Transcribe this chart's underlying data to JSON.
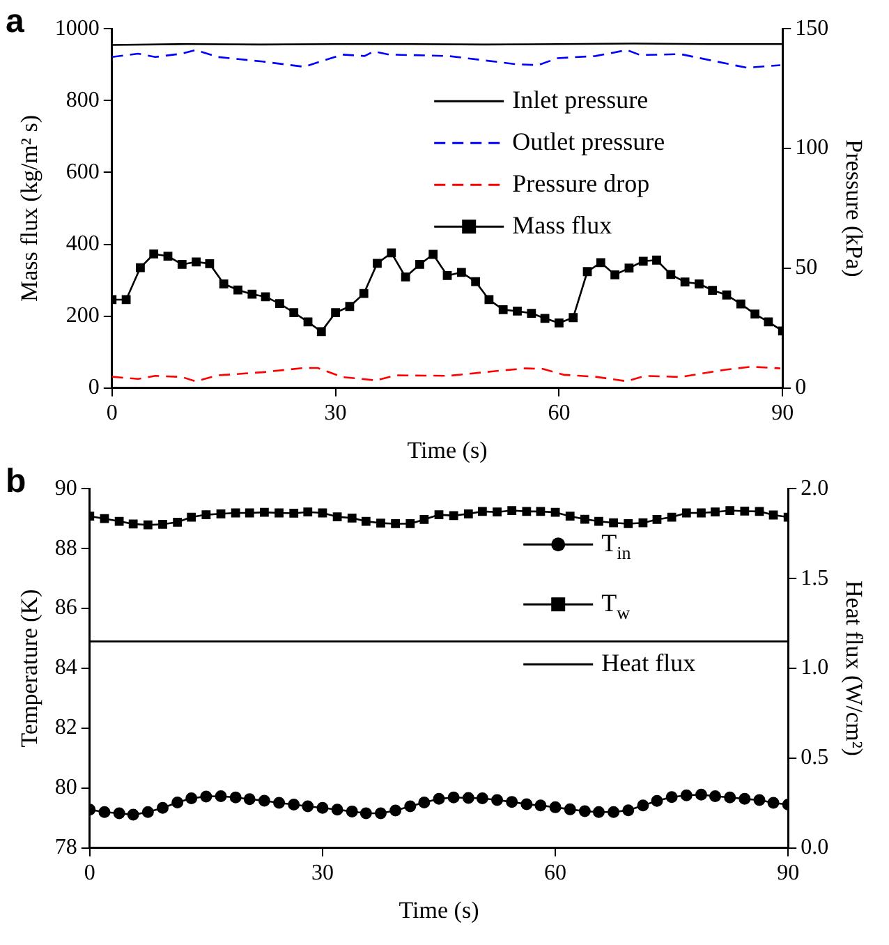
{
  "chart_data": [
    {
      "type": "line",
      "annotations": [
        "a"
      ],
      "xlabel": "Time (s)",
      "ylabel": "Mass flux (kg/m² s)",
      "y2label": "Pressure (kPa)",
      "xlim": [
        0,
        90
      ],
      "xticks": [
        0,
        30,
        60,
        90
      ],
      "ylim": [
        0,
        1000
      ],
      "yticks": [
        0,
        200,
        400,
        600,
        800,
        1000
      ],
      "y2lim": [
        0,
        150
      ],
      "y2ticks": [
        0,
        50,
        100,
        150
      ],
      "grid": false,
      "legend": "top right",
      "x": [
        0,
        1.9,
        3.8,
        5.6,
        7.5,
        9.4,
        11.3,
        13.1,
        15,
        16.9,
        18.8,
        20.6,
        22.5,
        24.4,
        26.3,
        28.1,
        30,
        31.9,
        33.8,
        35.6,
        37.5,
        39.4,
        41.3,
        43.1,
        45,
        46.9,
        48.8,
        50.6,
        52.5,
        54.4,
        56.3,
        58.1,
        60,
        61.9,
        63.8,
        65.6,
        67.5,
        69.4,
        71.3,
        73.1,
        75,
        76.9,
        78.8,
        80.6,
        82.5,
        84.4,
        86.3,
        88.1,
        90
      ],
      "series": [
        {
          "name": "Inlet pressure",
          "color": "#000000",
          "axis": "y2",
          "marker": "none",
          "line_style": "solid",
          "x": [
            0,
            10,
            20,
            30,
            40,
            50,
            60,
            70,
            80,
            90
          ],
          "values": [
            143.2,
            143.6,
            143.4,
            143.6,
            143.6,
            143.4,
            143.6,
            143.8,
            143.6,
            143.6
          ]
        },
        {
          "name": "Outlet pressure",
          "color": "#0000ff",
          "axis": "y2",
          "marker": "none",
          "line_style": "dashed",
          "x": [
            0,
            3.5,
            5.8,
            9.4,
            11.2,
            14.2,
            20.2,
            25.8,
            30.9,
            33.9,
            35.1,
            37.2,
            45.2,
            54.2,
            57.2,
            59.8,
            64.9,
            69.1,
            70.9,
            76.3,
            85.2,
            89.7
          ],
          "values": [
            138.2,
            139.6,
            138.2,
            139.6,
            141.1,
            138.2,
            136.3,
            134.1,
            139.2,
            138.6,
            140.5,
            139.2,
            138.6,
            135.2,
            134.8,
            137.7,
            138.6,
            141.1,
            139,
            139.4,
            133.7,
            134.8
          ]
        },
        {
          "name": "Pressure drop",
          "color": "#ff0000",
          "axis": "y2",
          "marker": "none",
          "line_style": "dashed",
          "x": [
            0,
            3.5,
            5.8,
            9.4,
            11.2,
            14.2,
            20.2,
            25.8,
            27.6,
            30.9,
            35.4,
            38.1,
            45.2,
            51.2,
            55.4,
            57.8,
            60.7,
            64.9,
            69.1,
            71.5,
            76.3,
            82.2,
            85.8,
            89.7
          ],
          "values": [
            4.7,
            3.8,
            5.1,
            4.6,
            2.8,
            5.3,
            6.6,
            8.4,
            8.4,
            4.6,
            3.2,
            5.3,
            5.1,
            7,
            8.2,
            8,
            5.5,
            4.7,
            2.8,
            5.1,
            4.6,
            7.6,
            8.9,
            8.2
          ]
        },
        {
          "name": "Mass flux",
          "color": "#000000",
          "marker": "square",
          "line_style": "solid",
          "values": [
            246,
            246,
            335,
            373,
            367,
            344,
            351,
            346,
            290,
            273,
            261,
            254,
            235,
            210,
            184,
            157,
            210,
            227,
            263,
            347,
            376,
            309,
            344,
            372,
            313,
            322,
            296,
            246,
            218,
            214,
            208,
            194,
            181,
            196,
            324,
            349,
            315,
            334,
            353,
            356,
            316,
            295,
            290,
            272,
            259,
            234,
            206,
            184,
            159
          ]
        }
      ]
    },
    {
      "type": "line",
      "annotations": [
        "b"
      ],
      "xlabel": "Time (s)",
      "ylabel": "Temperature (K)",
      "y2label": "Heat flux (W/cm²)",
      "xlim": [
        0,
        90
      ],
      "xticks": [
        0,
        30,
        60,
        90
      ],
      "ylim": [
        78,
        90
      ],
      "yticks": [
        78,
        80,
        82,
        84,
        86,
        88,
        90
      ],
      "y2lim": [
        0,
        2
      ],
      "y2ticks": [
        {
          "value": 0,
          "label": "0.0"
        },
        {
          "value": 0.5,
          "label": "0.5"
        },
        {
          "value": 1,
          "label": "1.0"
        },
        {
          "value": 1.5,
          "label": "1.5"
        },
        {
          "value": 2,
          "label": "2.0"
        }
      ],
      "grid": false,
      "legend": "right",
      "x": [
        0,
        1.9,
        3.8,
        5.6,
        7.5,
        9.4,
        11.3,
        13.1,
        15,
        16.9,
        18.8,
        20.6,
        22.5,
        24.4,
        26.3,
        28.1,
        30,
        31.9,
        33.8,
        35.6,
        37.5,
        39.4,
        41.3,
        43.1,
        45,
        46.9,
        48.8,
        50.6,
        52.5,
        54.4,
        56.3,
        58.1,
        60,
        61.9,
        63.8,
        65.6,
        67.5,
        69.4,
        71.3,
        73.1,
        75,
        76.9,
        78.8,
        80.6,
        82.5,
        84.4,
        86.3,
        88.1,
        90
      ],
      "series": [
        {
          "name": "T$_{in}$",
          "color": "#000000",
          "marker": "circle",
          "line_style": "solid",
          "values": [
            79.28,
            79.2,
            79.16,
            79.11,
            79.2,
            79.34,
            79.52,
            79.66,
            79.72,
            79.73,
            79.69,
            79.63,
            79.58,
            79.51,
            79.45,
            79.39,
            79.34,
            79.28,
            79.22,
            79.16,
            79.16,
            79.25,
            79.39,
            79.52,
            79.64,
            79.69,
            79.67,
            79.66,
            79.6,
            79.54,
            79.46,
            79.42,
            79.36,
            79.29,
            79.23,
            79.2,
            79.2,
            79.26,
            79.42,
            79.57,
            79.7,
            79.76,
            79.78,
            79.73,
            79.69,
            79.64,
            79.6,
            79.51,
            79.45
          ]
        },
        {
          "name": "T$_{w}$",
          "color": "#000000",
          "marker": "square",
          "line_style": "solid",
          "values": [
            89.08,
            89.0,
            88.91,
            88.82,
            88.79,
            88.81,
            88.88,
            89.05,
            89.13,
            89.16,
            89.19,
            89.19,
            89.21,
            89.19,
            89.18,
            89.22,
            89.19,
            89.06,
            89.02,
            88.91,
            88.85,
            88.83,
            88.83,
            88.97,
            89.13,
            89.1,
            89.16,
            89.24,
            89.22,
            89.27,
            89.24,
            89.24,
            89.21,
            89.08,
            88.98,
            88.91,
            88.86,
            88.83,
            88.86,
            88.97,
            89.05,
            89.19,
            89.19,
            89.22,
            89.27,
            89.25,
            89.24,
            89.12,
            89.05
          ]
        },
        {
          "name": "Heat flux",
          "color": "#000000",
          "axis": "y2",
          "marker": "none",
          "line_style": "solid",
          "x": [
            0,
            90
          ],
          "values": [
            1.15,
            1.15
          ]
        }
      ]
    }
  ]
}
